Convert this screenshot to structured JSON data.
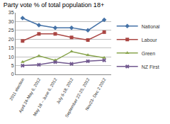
{
  "chart_data": {
    "type": "line",
    "title": "Party vote % of total population 18+",
    "categories": [
      "2011 election",
      "April 24-May 6, 2012",
      "May 18 – June 6, 2012",
      "July 6-18, 2012",
      "September 22-25, 2012",
      "Nov23- Dec 2 2012"
    ],
    "series": [
      {
        "name": "National",
        "color": "#4572A7",
        "marker": "diamond",
        "values": [
          32,
          28,
          26.5,
          26.5,
          25,
          31
        ]
      },
      {
        "name": "Labour",
        "color": "#AA4643",
        "marker": "square",
        "values": [
          19,
          23,
          23,
          21,
          19.5,
          24
        ]
      },
      {
        "name": "Green",
        "color": "#89A54E",
        "marker": "triangle-up",
        "values": [
          7,
          10.5,
          8,
          13,
          11,
          9.5
        ]
      },
      {
        "name": "NZ First",
        "color": "#71588F",
        "marker": "x",
        "values": [
          5,
          5.5,
          7,
          6,
          7.5,
          8
        ]
      }
    ],
    "ylim": [
      0,
      35
    ],
    "yticks": [
      0,
      5,
      10,
      15,
      20,
      25,
      30,
      35
    ],
    "grid": true,
    "legend": "right"
  }
}
